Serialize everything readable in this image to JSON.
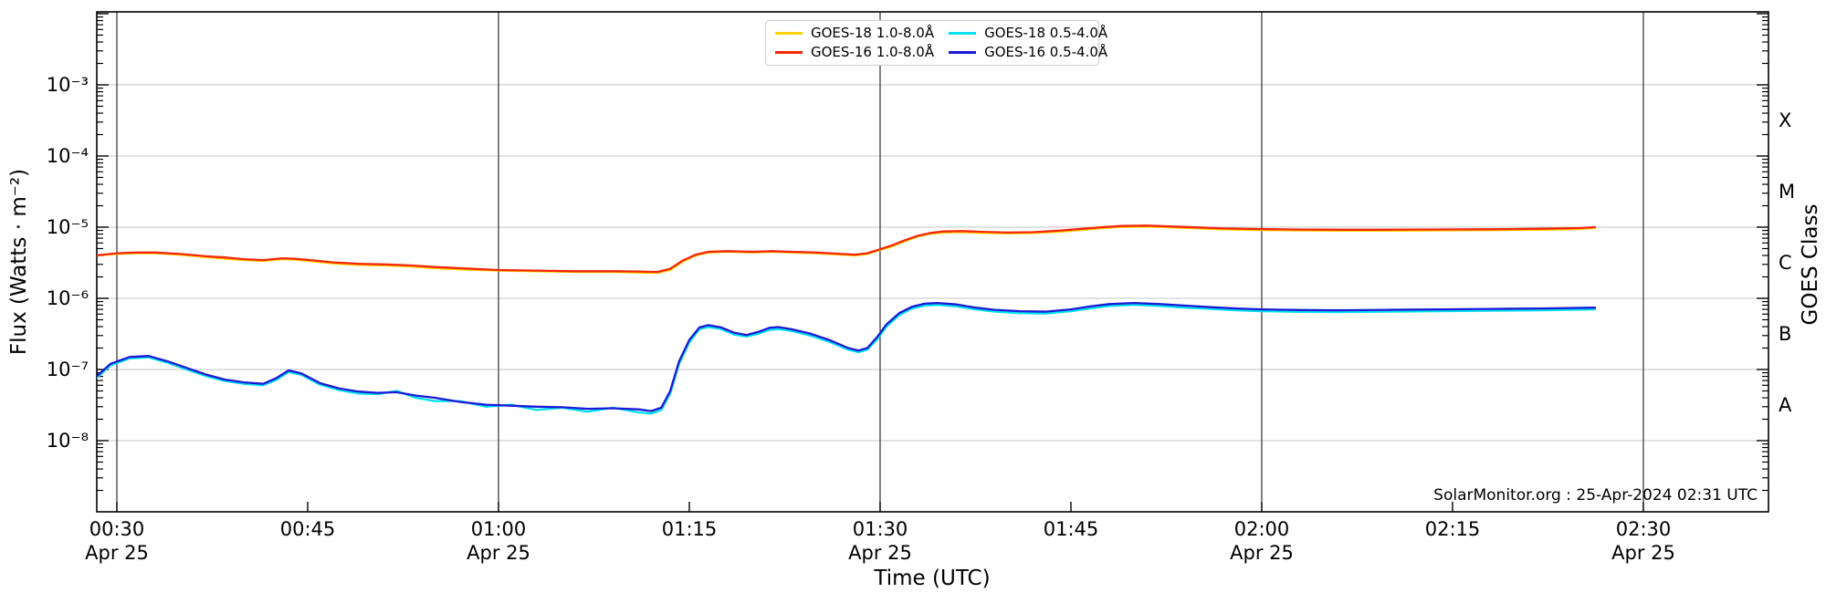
{
  "chart_data": {
    "type": "line",
    "title": "",
    "xlabel": "Time (UTC)",
    "ylabel": "Flux (Watts · m⁻²)",
    "ylabel_right": "GOES Class",
    "annotation": "SolarMonitor.org : 25-Apr-2024 02:31 UTC",
    "x_axis": {
      "date": "Apr 25",
      "start_minutes": 28.4,
      "end_minutes": 159.9,
      "units": "minutes after 00:00 UTC"
    },
    "y_range_exponents": [
      -9,
      -2
    ],
    "y_gridline_exponents": [
      -8,
      -7,
      -6,
      -5,
      -4,
      -3
    ],
    "x_gridline_minutes": [
      30,
      60,
      90,
      120,
      150
    ],
    "x_ticks": [
      {
        "t": 30,
        "label": "00:30",
        "sub": "Apr 25"
      },
      {
        "t": 45,
        "label": "00:45"
      },
      {
        "t": 60,
        "label": "01:00",
        "sub": "Apr 25"
      },
      {
        "t": 75,
        "label": "01:15"
      },
      {
        "t": 90,
        "label": "01:30",
        "sub": "Apr 25"
      },
      {
        "t": 105,
        "label": "01:45"
      },
      {
        "t": 120,
        "label": "02:00",
        "sub": "Apr 25"
      },
      {
        "t": 135,
        "label": "02:15"
      },
      {
        "t": 150,
        "label": "02:30",
        "sub": "Apr 25"
      }
    ],
    "y_ticks": [
      {
        "exp": -3,
        "label": "10⁻³"
      },
      {
        "exp": -4,
        "label": "10⁻⁴"
      },
      {
        "exp": -5,
        "label": "10⁻⁵"
      },
      {
        "exp": -6,
        "label": "10⁻⁶"
      },
      {
        "exp": -7,
        "label": "10⁻⁷"
      },
      {
        "exp": -8,
        "label": "10⁻⁸"
      }
    ],
    "class_labels": [
      {
        "label": "X",
        "exp": -3.5
      },
      {
        "label": "M",
        "exp": -4.5
      },
      {
        "label": "C",
        "exp": -5.5
      },
      {
        "label": "B",
        "exp": -6.5
      },
      {
        "label": "A",
        "exp": -7.5
      }
    ],
    "legend": {
      "position": "top center",
      "columns": 2
    },
    "colors": {
      "goes18_long": "#ffd400",
      "goes16_long": "#f22708",
      "goes18_short": "#00e0ee",
      "goes16_short": "#1a1ad6",
      "grid_h": "#c6c6c6",
      "grid_v": "#2e2e2e",
      "frame": "#000000"
    },
    "series": [
      {
        "name": "GOES-18 1.0-8.0Å",
        "color": "#ffd400",
        "points": [
          [
            28.4,
            4e-06
          ],
          [
            30,
            4.2e-06
          ],
          [
            31.5,
            4.3e-06
          ],
          [
            33,
            4.3e-06
          ],
          [
            35,
            4.1e-06
          ],
          [
            37,
            3.8e-06
          ],
          [
            38.5,
            3.6e-06
          ],
          [
            40,
            3.45e-06
          ],
          [
            41.5,
            3.35e-06
          ],
          [
            43,
            3.55e-06
          ],
          [
            44,
            3.5e-06
          ],
          [
            45.5,
            3.3e-06
          ],
          [
            47,
            3.1e-06
          ],
          [
            49,
            2.95e-06
          ],
          [
            51,
            2.9e-06
          ],
          [
            53,
            2.8e-06
          ],
          [
            55,
            2.65e-06
          ],
          [
            57,
            2.55e-06
          ],
          [
            60,
            2.45e-06
          ],
          [
            63,
            2.4e-06
          ],
          [
            66,
            2.35e-06
          ],
          [
            69,
            2.35e-06
          ],
          [
            71,
            2.3e-06
          ],
          [
            72.5,
            2.28e-06
          ],
          [
            73.5,
            2.5e-06
          ],
          [
            74.5,
            3.3e-06
          ],
          [
            75.5,
            4e-06
          ],
          [
            76.5,
            4.4e-06
          ],
          [
            78,
            4.5e-06
          ],
          [
            80,
            4.4e-06
          ],
          [
            81.5,
            4.5e-06
          ],
          [
            83,
            4.4e-06
          ],
          [
            85,
            4.3e-06
          ],
          [
            87,
            4.1e-06
          ],
          [
            88,
            4e-06
          ],
          [
            89,
            4.2e-06
          ],
          [
            90,
            4.8e-06
          ],
          [
            91,
            5.4e-06
          ],
          [
            92,
            6.4e-06
          ],
          [
            93,
            7.4e-06
          ],
          [
            94,
            8.1e-06
          ],
          [
            95,
            8.4e-06
          ],
          [
            96.5,
            8.5e-06
          ],
          [
            98,
            8.3e-06
          ],
          [
            100,
            8.2e-06
          ],
          [
            102,
            8.3e-06
          ],
          [
            104,
            8.6e-06
          ],
          [
            106,
            9.2e-06
          ],
          [
            107.5,
            9.7e-06
          ],
          [
            109,
            1.01e-05
          ],
          [
            111,
            1.02e-05
          ],
          [
            113,
            9.9e-06
          ],
          [
            115,
            9.6e-06
          ],
          [
            117,
            9.3e-06
          ],
          [
            120,
            9.1e-06
          ],
          [
            123,
            9e-06
          ],
          [
            126,
            8.9e-06
          ],
          [
            130,
            8.9e-06
          ],
          [
            134,
            9e-06
          ],
          [
            138,
            9.1e-06
          ],
          [
            142,
            9.2e-06
          ],
          [
            145,
            9.4e-06
          ],
          [
            146.2,
            9.7e-06
          ]
        ]
      },
      {
        "name": "GOES-16 1.0-8.0Å",
        "color": "#f22708",
        "points": [
          [
            28.4,
            4e-06
          ],
          [
            30,
            4.3e-06
          ],
          [
            31.5,
            4.4e-06
          ],
          [
            33,
            4.4e-06
          ],
          [
            35,
            4.2e-06
          ],
          [
            37,
            3.9e-06
          ],
          [
            38.5,
            3.75e-06
          ],
          [
            40,
            3.55e-06
          ],
          [
            41.5,
            3.45e-06
          ],
          [
            43,
            3.65e-06
          ],
          [
            44,
            3.6e-06
          ],
          [
            45.5,
            3.4e-06
          ],
          [
            47,
            3.2e-06
          ],
          [
            49,
            3.05e-06
          ],
          [
            51,
            3e-06
          ],
          [
            53,
            2.9e-06
          ],
          [
            55,
            2.75e-06
          ],
          [
            57,
            2.65e-06
          ],
          [
            60,
            2.5e-06
          ],
          [
            63,
            2.45e-06
          ],
          [
            66,
            2.4e-06
          ],
          [
            69,
            2.4e-06
          ],
          [
            71,
            2.38e-06
          ],
          [
            72.5,
            2.35e-06
          ],
          [
            73.5,
            2.6e-06
          ],
          [
            74.5,
            3.4e-06
          ],
          [
            75.5,
            4.1e-06
          ],
          [
            76.5,
            4.5e-06
          ],
          [
            78,
            4.6e-06
          ],
          [
            80,
            4.5e-06
          ],
          [
            81.5,
            4.6e-06
          ],
          [
            83,
            4.5e-06
          ],
          [
            85,
            4.4e-06
          ],
          [
            87,
            4.2e-06
          ],
          [
            88,
            4.1e-06
          ],
          [
            89,
            4.3e-06
          ],
          [
            90,
            4.9e-06
          ],
          [
            91,
            5.6e-06
          ],
          [
            92,
            6.6e-06
          ],
          [
            93,
            7.6e-06
          ],
          [
            94,
            8.3e-06
          ],
          [
            95,
            8.7e-06
          ],
          [
            96.5,
            8.8e-06
          ],
          [
            98,
            8.6e-06
          ],
          [
            100,
            8.4e-06
          ],
          [
            102,
            8.5e-06
          ],
          [
            104,
            8.9e-06
          ],
          [
            106,
            9.5e-06
          ],
          [
            107.5,
            1e-05
          ],
          [
            109,
            1.04e-05
          ],
          [
            111,
            1.05e-05
          ],
          [
            113,
            1.02e-05
          ],
          [
            115,
            9.9e-06
          ],
          [
            117,
            9.6e-06
          ],
          [
            120,
            9.4e-06
          ],
          [
            123,
            9.25e-06
          ],
          [
            126,
            9.2e-06
          ],
          [
            130,
            9.2e-06
          ],
          [
            134,
            9.3e-06
          ],
          [
            138,
            9.35e-06
          ],
          [
            142,
            9.5e-06
          ],
          [
            145,
            9.7e-06
          ],
          [
            146.2,
            1e-05
          ]
        ]
      },
      {
        "name": "GOES-18 0.5-4.0Å",
        "color": "#00e0ee",
        "points": [
          [
            28.4,
            7.6e-08
          ],
          [
            29.5,
            1.14e-07
          ],
          [
            31,
            1.43e-07
          ],
          [
            32.5,
            1.48e-07
          ],
          [
            34,
            1.24e-07
          ],
          [
            35.5,
            1e-07
          ],
          [
            37,
            8.1e-08
          ],
          [
            38.5,
            6.9e-08
          ],
          [
            40,
            6.3e-08
          ],
          [
            41.5,
            6e-08
          ],
          [
            42.5,
            7.1e-08
          ],
          [
            43.5,
            9.2e-08
          ],
          [
            44.5,
            8.4e-08
          ],
          [
            46,
            6.1e-08
          ],
          [
            47.5,
            5.1e-08
          ],
          [
            49,
            4.6e-08
          ],
          [
            50.5,
            4.5e-08
          ],
          [
            52,
            5e-08
          ],
          [
            53.5,
            4e-08
          ],
          [
            55,
            3.6e-08
          ],
          [
            57,
            3.6e-08
          ],
          [
            59,
            3e-08
          ],
          [
            61,
            3.2e-08
          ],
          [
            63,
            2.7e-08
          ],
          [
            65,
            2.9e-08
          ],
          [
            67,
            2.55e-08
          ],
          [
            69,
            2.9e-08
          ],
          [
            71,
            2.5e-08
          ],
          [
            72,
            2.4e-08
          ],
          [
            72.8,
            2.7e-08
          ],
          [
            73.5,
            4.6e-08
          ],
          [
            74.2,
            1.2e-07
          ],
          [
            75,
            2.4e-07
          ],
          [
            75.8,
            3.7e-07
          ],
          [
            76.5,
            3.95e-07
          ],
          [
            77.5,
            3.7e-07
          ],
          [
            78.5,
            3.1e-07
          ],
          [
            79.5,
            2.9e-07
          ],
          [
            80.5,
            3.2e-07
          ],
          [
            81.3,
            3.6e-07
          ],
          [
            82,
            3.7e-07
          ],
          [
            83,
            3.5e-07
          ],
          [
            84.5,
            3e-07
          ],
          [
            86,
            2.45e-07
          ],
          [
            87.5,
            1.9e-07
          ],
          [
            88.3,
            1.75e-07
          ],
          [
            89,
            1.9e-07
          ],
          [
            89.8,
            2.7e-07
          ],
          [
            90.5,
            4e-07
          ],
          [
            91.5,
            5.8e-07
          ],
          [
            92.5,
            7.2e-07
          ],
          [
            93.5,
            7.9e-07
          ],
          [
            94.5,
            8.1e-07
          ],
          [
            96,
            7.7e-07
          ],
          [
            97.5,
            7e-07
          ],
          [
            99,
            6.5e-07
          ],
          [
            101,
            6.2e-07
          ],
          [
            103,
            6.1e-07
          ],
          [
            105,
            6.6e-07
          ],
          [
            106.5,
            7.2e-07
          ],
          [
            108,
            7.8e-07
          ],
          [
            110,
            8.1e-07
          ],
          [
            112,
            7.8e-07
          ],
          [
            114,
            7.4e-07
          ],
          [
            116,
            7.1e-07
          ],
          [
            118,
            6.8e-07
          ],
          [
            120,
            6.6e-07
          ],
          [
            123,
            6.45e-07
          ],
          [
            126,
            6.4e-07
          ],
          [
            130,
            6.5e-07
          ],
          [
            134,
            6.6e-07
          ],
          [
            138,
            6.7e-07
          ],
          [
            142,
            6.8e-07
          ],
          [
            146.2,
            7e-07
          ]
        ]
      },
      {
        "name": "GOES-16 0.5-4.0Å",
        "color": "#1a1ad6",
        "points": [
          [
            28.4,
            8e-08
          ],
          [
            29.5,
            1.2e-07
          ],
          [
            31,
            1.5e-07
          ],
          [
            32.5,
            1.55e-07
          ],
          [
            34,
            1.3e-07
          ],
          [
            35.5,
            1.05e-07
          ],
          [
            37,
            8.5e-08
          ],
          [
            38.5,
            7.2e-08
          ],
          [
            40,
            6.6e-08
          ],
          [
            41.5,
            6.3e-08
          ],
          [
            42.5,
            7.5e-08
          ],
          [
            43.5,
            9.7e-08
          ],
          [
            44.5,
            8.8e-08
          ],
          [
            46,
            6.4e-08
          ],
          [
            47.5,
            5.4e-08
          ],
          [
            49,
            4.9e-08
          ],
          [
            50.5,
            4.7e-08
          ],
          [
            52,
            4.8e-08
          ],
          [
            53.5,
            4.3e-08
          ],
          [
            55,
            4e-08
          ],
          [
            57,
            3.5e-08
          ],
          [
            59,
            3.2e-08
          ],
          [
            61,
            3.1e-08
          ],
          [
            63,
            3e-08
          ],
          [
            65,
            2.95e-08
          ],
          [
            67,
            2.8e-08
          ],
          [
            69,
            2.85e-08
          ],
          [
            71,
            2.75e-08
          ],
          [
            72,
            2.6e-08
          ],
          [
            72.8,
            2.9e-08
          ],
          [
            73.5,
            5e-08
          ],
          [
            74.2,
            1.3e-07
          ],
          [
            75,
            2.6e-07
          ],
          [
            75.8,
            3.9e-07
          ],
          [
            76.5,
            4.2e-07
          ],
          [
            77.5,
            3.9e-07
          ],
          [
            78.5,
            3.3e-07
          ],
          [
            79.5,
            3.05e-07
          ],
          [
            80.5,
            3.4e-07
          ],
          [
            81.3,
            3.85e-07
          ],
          [
            82,
            3.95e-07
          ],
          [
            83,
            3.7e-07
          ],
          [
            84.5,
            3.2e-07
          ],
          [
            86,
            2.6e-07
          ],
          [
            87.5,
            2e-07
          ],
          [
            88.3,
            1.85e-07
          ],
          [
            89,
            2e-07
          ],
          [
            89.8,
            2.9e-07
          ],
          [
            90.5,
            4.3e-07
          ],
          [
            91.5,
            6.2e-07
          ],
          [
            92.5,
            7.6e-07
          ],
          [
            93.5,
            8.4e-07
          ],
          [
            94.5,
            8.6e-07
          ],
          [
            96,
            8.2e-07
          ],
          [
            97.5,
            7.4e-07
          ],
          [
            99,
            6.9e-07
          ],
          [
            101,
            6.6e-07
          ],
          [
            103,
            6.5e-07
          ],
          [
            105,
            7e-07
          ],
          [
            106.5,
            7.7e-07
          ],
          [
            108,
            8.3e-07
          ],
          [
            110,
            8.6e-07
          ],
          [
            112,
            8.3e-07
          ],
          [
            114,
            7.9e-07
          ],
          [
            116,
            7.5e-07
          ],
          [
            118,
            7.2e-07
          ],
          [
            120,
            7e-07
          ],
          [
            123,
            6.85e-07
          ],
          [
            126,
            6.8e-07
          ],
          [
            130,
            6.9e-07
          ],
          [
            134,
            7e-07
          ],
          [
            138,
            7.1e-07
          ],
          [
            142,
            7.2e-07
          ],
          [
            146.2,
            7.4e-07
          ]
        ]
      }
    ]
  }
}
